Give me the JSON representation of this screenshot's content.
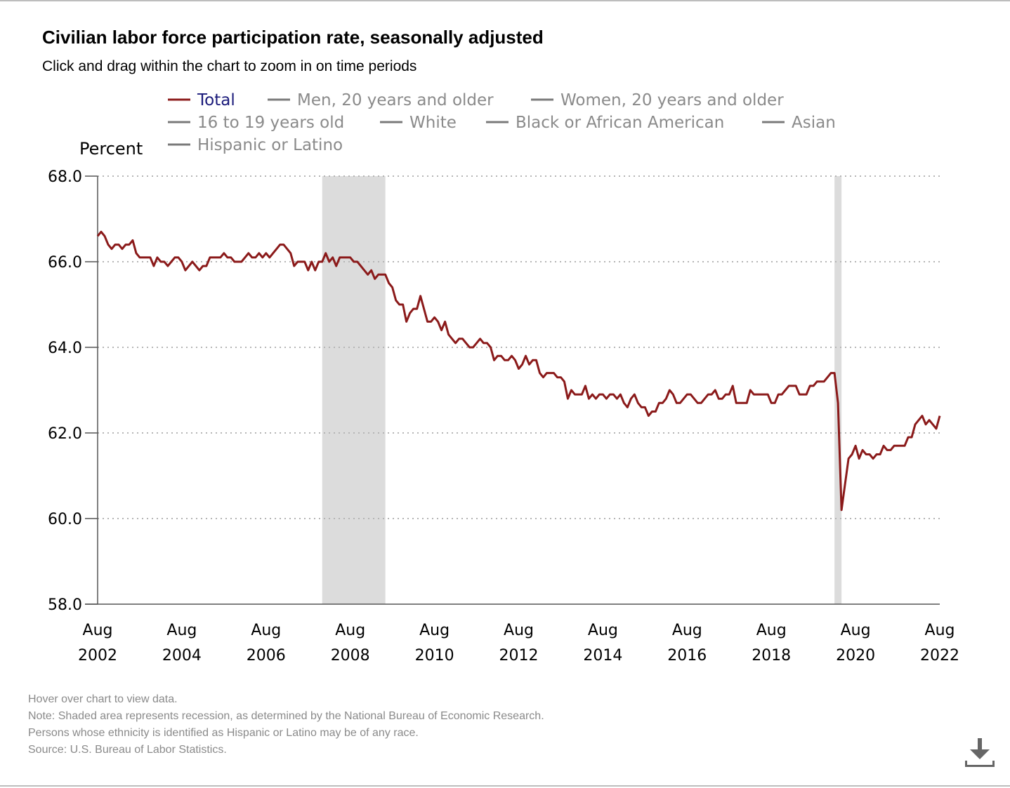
{
  "header": {
    "title": "Civilian labor force participation rate, seasonally adjusted",
    "subtitle": "Click and drag within the chart to zoom in on time periods"
  },
  "legend": {
    "items": [
      {
        "label": "Total",
        "color": "#8b1a1a",
        "text_color": "#1a1a7a",
        "active": true
      },
      {
        "label": "Men, 20 years and older",
        "color": "#7a7a7a",
        "text_color": "#8a8a8a",
        "active": false
      },
      {
        "label": "Women, 20 years and older",
        "color": "#7a7a7a",
        "text_color": "#8a8a8a",
        "active": false
      },
      {
        "label": "16 to 19 years old",
        "color": "#7a7a7a",
        "text_color": "#8a8a8a",
        "active": false
      },
      {
        "label": "White",
        "color": "#7a7a7a",
        "text_color": "#8a8a8a",
        "active": false
      },
      {
        "label": "Black or African American",
        "color": "#7a7a7a",
        "text_color": "#8a8a8a",
        "active": false
      },
      {
        "label": "Asian",
        "color": "#7a7a7a",
        "text_color": "#8a8a8a",
        "active": false
      },
      {
        "label": "Hispanic or Latino",
        "color": "#7a7a7a",
        "text_color": "#8a8a8a",
        "active": false
      }
    ]
  },
  "notes": [
    "Hover over chart to view data.",
    "Note: Shaded area represents recession, as determined by the National Bureau of Economic Research.",
    "Persons whose ethnicity is identified as Hispanic or Latino may be of any race.",
    "Source: U.S. Bureau of Labor Statistics."
  ],
  "icons": {
    "download": "download-icon"
  },
  "chart_data": {
    "type": "line",
    "title": "Civilian labor force participation rate, seasonally adjusted",
    "ylabel": "Percent",
    "ylim": [
      58.0,
      68.0
    ],
    "yticks": [
      "58.0",
      "60.0",
      "62.0",
      "64.0",
      "66.0",
      "68.0"
    ],
    "xlim": [
      "2002-08",
      "2022-08"
    ],
    "xticks": [
      {
        "date": "2002-08",
        "month": "Aug",
        "year": "2002"
      },
      {
        "date": "2004-08",
        "month": "Aug",
        "year": "2004"
      },
      {
        "date": "2006-08",
        "month": "Aug",
        "year": "2006"
      },
      {
        "date": "2008-08",
        "month": "Aug",
        "year": "2008"
      },
      {
        "date": "2010-08",
        "month": "Aug",
        "year": "2010"
      },
      {
        "date": "2012-08",
        "month": "Aug",
        "year": "2012"
      },
      {
        "date": "2014-08",
        "month": "Aug",
        "year": "2014"
      },
      {
        "date": "2016-08",
        "month": "Aug",
        "year": "2016"
      },
      {
        "date": "2018-08",
        "month": "Aug",
        "year": "2018"
      },
      {
        "date": "2020-08",
        "month": "Aug",
        "year": "2020"
      },
      {
        "date": "2022-08",
        "month": "Aug",
        "year": "2022"
      }
    ],
    "grid": true,
    "legend_position": "top",
    "recessions": [
      {
        "start": "2007-12",
        "end": "2009-06"
      },
      {
        "start": "2020-02",
        "end": "2020-04"
      }
    ],
    "series": [
      {
        "name": "Total",
        "color": "#8b1a1a",
        "start": "2002-08",
        "frequency": "monthly",
        "values": [
          66.6,
          66.7,
          66.6,
          66.4,
          66.3,
          66.4,
          66.4,
          66.3,
          66.4,
          66.4,
          66.5,
          66.2,
          66.1,
          66.1,
          66.1,
          66.1,
          65.9,
          66.1,
          66.0,
          66.0,
          65.9,
          66.0,
          66.1,
          66.1,
          66.0,
          65.8,
          65.9,
          66.0,
          65.9,
          65.8,
          65.9,
          65.9,
          66.1,
          66.1,
          66.1,
          66.1,
          66.2,
          66.1,
          66.1,
          66.0,
          66.0,
          66.0,
          66.1,
          66.2,
          66.1,
          66.1,
          66.2,
          66.1,
          66.2,
          66.1,
          66.2,
          66.3,
          66.4,
          66.4,
          66.3,
          66.2,
          65.9,
          66.0,
          66.0,
          66.0,
          65.8,
          66.0,
          65.8,
          66.0,
          66.0,
          66.2,
          66.0,
          66.1,
          65.9,
          66.1,
          66.1,
          66.1,
          66.1,
          66.0,
          66.0,
          65.9,
          65.8,
          65.7,
          65.8,
          65.6,
          65.7,
          65.7,
          65.7,
          65.5,
          65.4,
          65.1,
          65.0,
          65.0,
          64.6,
          64.8,
          64.9,
          64.9,
          65.2,
          64.9,
          64.6,
          64.6,
          64.7,
          64.6,
          64.4,
          64.6,
          64.3,
          64.2,
          64.1,
          64.2,
          64.2,
          64.1,
          64.0,
          64.0,
          64.1,
          64.2,
          64.1,
          64.1,
          64.0,
          63.7,
          63.8,
          63.8,
          63.7,
          63.7,
          63.8,
          63.7,
          63.5,
          63.6,
          63.8,
          63.6,
          63.7,
          63.7,
          63.4,
          63.3,
          63.4,
          63.4,
          63.4,
          63.3,
          63.3,
          63.2,
          62.8,
          63.0,
          62.9,
          62.9,
          62.9,
          63.1,
          62.8,
          62.9,
          62.8,
          62.9,
          62.9,
          62.8,
          62.9,
          62.9,
          62.8,
          62.9,
          62.7,
          62.6,
          62.8,
          62.9,
          62.7,
          62.6,
          62.6,
          62.4,
          62.5,
          62.5,
          62.7,
          62.7,
          62.8,
          63.0,
          62.9,
          62.7,
          62.7,
          62.8,
          62.9,
          62.9,
          62.8,
          62.7,
          62.7,
          62.8,
          62.9,
          62.9,
          63.0,
          62.8,
          62.8,
          62.9,
          62.9,
          63.1,
          62.7,
          62.7,
          62.7,
          62.7,
          63.0,
          62.9,
          62.9,
          62.9,
          62.9,
          62.9,
          62.7,
          62.7,
          62.9,
          62.9,
          63.0,
          63.1,
          63.1,
          63.1,
          62.9,
          62.9,
          62.9,
          63.1,
          63.1,
          63.2,
          63.2,
          63.2,
          63.3,
          63.4,
          63.4,
          62.7,
          60.2,
          60.8,
          61.4,
          61.5,
          61.7,
          61.4,
          61.6,
          61.5,
          61.5,
          61.4,
          61.5,
          61.5,
          61.7,
          61.6,
          61.6,
          61.7,
          61.7,
          61.7,
          61.7,
          61.9,
          61.9,
          62.2,
          62.3,
          62.4,
          62.2,
          62.3,
          62.2,
          62.1,
          62.4
        ]
      }
    ]
  }
}
